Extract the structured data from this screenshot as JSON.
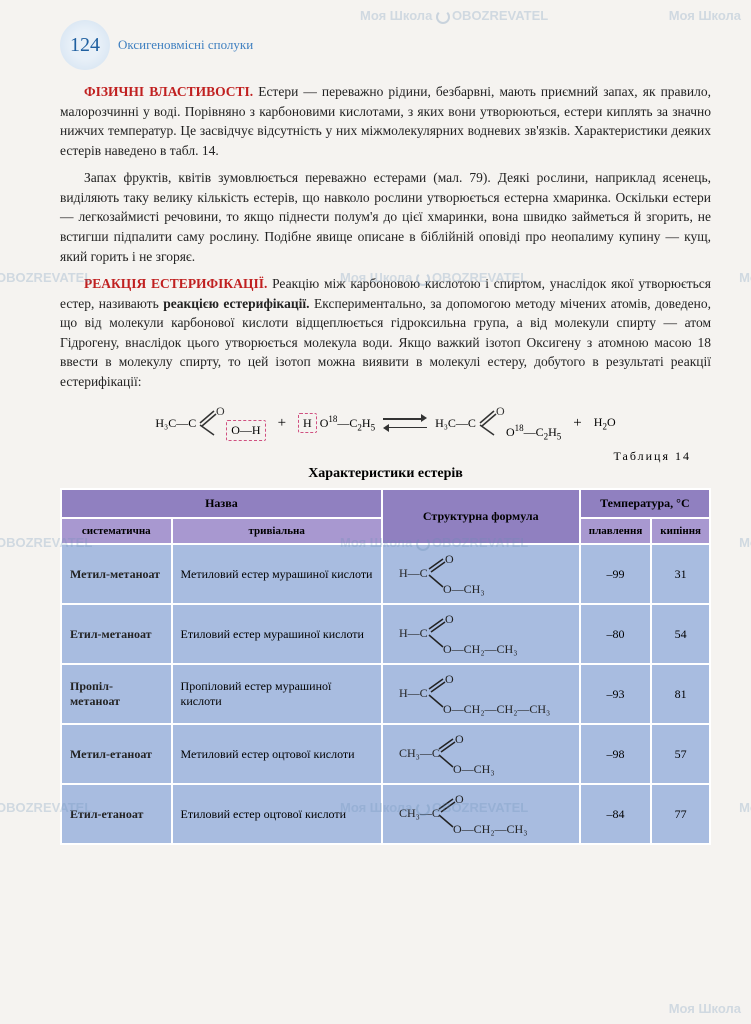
{
  "page": {
    "number": "124",
    "chapter": "Оксигеновмісні сполуки"
  },
  "sections": {
    "physical": {
      "heading": "ФІЗИЧНІ ВЛАСТИВОСТІ.",
      "p1": " Естери — переважно рідини, безбарвні, мають приємний запах, як правило, малорозчинні у воді. Порівняно з карбоновими кислотами, з яких вони утворюються, естери киплять за значно нижчих температур. Це засвідчує відсутність у них міжмолекулярних водневих зв'язків. Характеристики деяких естерів наведено в табл. 14.",
      "p2": "Запах фруктів, квітів зумовлюється переважно естерами (мал. 79). Деякі рослини, наприклад ясенець, виділяють таку велику кількість естерів, що навколо рослини утворюється естерна хмаринка. Оскільки естери — легкозаймисті речовини, то якщо піднести полум'я до цієї хмаринки, вона швидко займеться й згорить, не встигши підпалити саму рослину. Подібне явище описане в біблійній оповіді про неопалиму купину — кущ, який горить і не згоряє."
    },
    "esterification": {
      "heading": "РЕАКЦІЯ ЕСТЕРИФІКАЦІЇ.",
      "p1_a": " Реакцію між карбоновою кислотою і спиртом, унаслідок якої утворюється естер, називають ",
      "p1_bold": "реакцією естерифікації.",
      "p1_b": " Експериментально, за допомогою методу мічених атомів, доведено, що від молекули карбонової кислоти відщеплюється гідроксильна група, а від молекули спирту — атом Гідрогену, внаслідок цього утворюється молекула води. Якщо важкий ізотоп Оксигену з атомною масою 18 ввести в молекулу спирту, то цей ізотоп можна виявити в молекулі естеру, добутого в результаті реакції естерифікації:"
    }
  },
  "reaction": {
    "r1_left": "H₃C—C",
    "r1_oh": "O—H",
    "plus": "+",
    "r2": "H O¹⁸—C₂H₅",
    "p1_left": "H₃C—C",
    "p1_o": "O¹⁸—C₂H₅",
    "water": "H₂O"
  },
  "table": {
    "label": "Таблиця 14",
    "title": "Характеристики естерів",
    "headers": {
      "name": "Назва",
      "systematic": "систематична",
      "trivial": "тривіальна",
      "formula": "Структурна формула",
      "temperature": "Температура, °С",
      "melting": "плавлення",
      "boiling": "кипіння"
    },
    "rows": [
      {
        "sys": "Метил-метаноат",
        "triv": "Метиловий естер мурашиної кислоти",
        "r": "H",
        "chain": "O—CH₃",
        "melt": "–99",
        "boil": "31"
      },
      {
        "sys": "Етил-метаноат",
        "triv": "Етиловий естер мурашиної кислоти",
        "r": "H",
        "chain": "O—CH₂—CH₃",
        "melt": "–80",
        "boil": "54"
      },
      {
        "sys": "Пропіл-метаноат",
        "triv": "Пропіловий естер мурашиної кислоти",
        "r": "H",
        "chain": "O—CH₂—CH₂—CH₃",
        "melt": "–93",
        "boil": "81"
      },
      {
        "sys": "Метил-етаноат",
        "triv": "Метиловий естер оцтової кислоти",
        "r": "CH₃",
        "chain": "O—CH₃",
        "melt": "–98",
        "boil": "57"
      },
      {
        "sys": "Етил-етаноат",
        "triv": "Етиловий естер оцтової кислоти",
        "r": "CH₃",
        "chain": "O—CH₂—CH₃",
        "melt": "–84",
        "boil": "77"
      }
    ]
  },
  "watermarks": {
    "school": "Моя Школа",
    "oboz": "OBOZREVATEL"
  }
}
